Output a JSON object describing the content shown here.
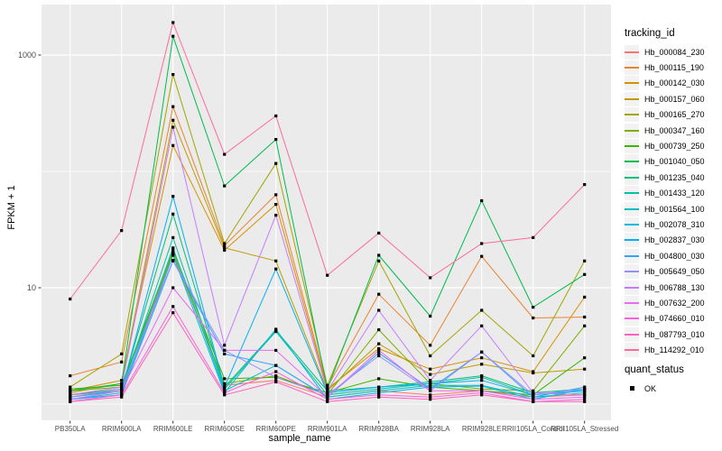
{
  "chart_data": {
    "type": "line",
    "title": "",
    "xlabel": "sample_name",
    "ylabel": "FPKM + 1",
    "y_scale": "log10",
    "ylim": [
      0.7,
      2700
    ],
    "y_ticks": [
      10,
      1000
    ],
    "y_tick_labels": [
      "10",
      "1000"
    ],
    "y_minor_gridlines": [
      1,
      100
    ],
    "grid": true,
    "panel_background": "#EBEBEB",
    "gridline_color": "#FFFFFF",
    "tick_label_color": "#4D4D4D",
    "point_color": "#000000",
    "point_shape": "square",
    "legend": {
      "title": "tracking_id",
      "position": "right"
    },
    "quant_legend": {
      "title": "quant_status",
      "items": [
        {
          "label": "OK",
          "marker": "square",
          "color": "#000000"
        }
      ]
    },
    "categories": [
      "PB350LA",
      "RRIM600LA",
      "RRIM600LE",
      "RRIM600SE",
      "RRIM600PE",
      "RRIM901LA",
      "RRIM928BA",
      "RRIM928LA",
      "RRIM928LE",
      "RRII105LA_Control",
      "RRII105LA_Stressed"
    ],
    "series": [
      {
        "name": "Hb_000084_230",
        "color": "#F8766D",
        "values": [
          1.2,
          1.3,
          19.5,
          1.45,
          1.6,
          1.15,
          1.3,
          1.2,
          1.3,
          1.15,
          1.2
        ]
      },
      {
        "name": "Hb_000115_190",
        "color": "#EA8331",
        "values": [
          1.75,
          2.3,
          360,
          23,
          63,
          1.4,
          8.8,
          3.2,
          18.6,
          5.5,
          5.6
        ]
      },
      {
        "name": "Hb_000142_030",
        "color": "#D89000",
        "values": [
          1.3,
          1.6,
          167,
          21,
          52,
          1.35,
          3.0,
          2.0,
          2.5,
          1.9,
          8.3
        ]
      },
      {
        "name": "Hb_000157_060",
        "color": "#C09B00",
        "values": [
          1.25,
          1.5,
          275,
          22,
          17,
          1.3,
          3.3,
          1.8,
          2.2,
          1.85,
          2.0
        ]
      },
      {
        "name": "Hb_000165_270",
        "color": "#A3A500",
        "values": [
          1.4,
          2.7,
          680,
          24,
          117,
          1.45,
          17,
          2.6,
          6.4,
          2.6,
          17
        ]
      },
      {
        "name": "Hb_000347_160",
        "color": "#7CAE00",
        "values": [
          1.3,
          1.4,
          20,
          1.5,
          1.75,
          1.2,
          4.35,
          1.5,
          1.35,
          1.3,
          4.7
        ]
      },
      {
        "name": "Hb_000739_250",
        "color": "#39B600",
        "values": [
          1.35,
          1.45,
          21,
          1.65,
          1.7,
          1.25,
          1.65,
          1.4,
          1.3,
          1.2,
          2.5
        ]
      },
      {
        "name": "Hb_001040_050",
        "color": "#00BB4E",
        "values": [
          1.3,
          1.5,
          1450,
          75,
          188,
          1.35,
          19,
          5.7,
          56,
          6.8,
          13
        ]
      },
      {
        "name": "Hb_001235_040",
        "color": "#00BF7D",
        "values": [
          1.2,
          1.35,
          43,
          1.4,
          4.3,
          1.3,
          1.4,
          1.55,
          1.75,
          1.25,
          1.35
        ]
      },
      {
        "name": "Hb_001433_120",
        "color": "#00C1A3",
        "values": [
          1.15,
          1.3,
          27,
          1.35,
          4.2,
          1.2,
          1.35,
          1.5,
          1.7,
          1.2,
          1.3
        ]
      },
      {
        "name": "Hb_001564_100",
        "color": "#00BFC4",
        "values": [
          1.1,
          1.25,
          22,
          1.3,
          2.15,
          1.15,
          1.3,
          1.45,
          1.45,
          1.15,
          1.25
        ]
      },
      {
        "name": "Hb_002078_310",
        "color": "#00BAE0",
        "values": [
          1.1,
          1.2,
          19,
          1.25,
          4.4,
          1.1,
          1.25,
          1.4,
          1.43,
          1.1,
          1.35
        ]
      },
      {
        "name": "Hb_002837_030",
        "color": "#00B0F6",
        "values": [
          1.15,
          1.3,
          61,
          1.4,
          14.5,
          1.25,
          1.4,
          1.5,
          1.6,
          1.2,
          1.3
        ]
      },
      {
        "name": "Hb_004800_030",
        "color": "#35A2FF",
        "values": [
          1.1,
          1.2,
          17,
          2.7,
          2.15,
          1.15,
          2.75,
          1.35,
          2.8,
          1.15,
          1.4
        ]
      },
      {
        "name": "Hb_005649_050",
        "color": "#9590FF",
        "values": [
          1.15,
          1.35,
          17.2,
          2.9,
          1.7,
          1.2,
          2.6,
          1.3,
          2.8,
          1.2,
          1.35
        ]
      },
      {
        "name": "Hb_006788_130",
        "color": "#C77CFF",
        "values": [
          1.2,
          1.4,
          240,
          3.2,
          42,
          1.3,
          6.4,
          1.6,
          4.7,
          1.25,
          1.2
        ]
      },
      {
        "name": "Hb_007632_200",
        "color": "#E76BF3",
        "values": [
          1.1,
          1.3,
          10,
          2.9,
          2.9,
          1.15,
          2.9,
          1.3,
          1.3,
          1.1,
          1.15
        ]
      },
      {
        "name": "Hb_074660_010",
        "color": "#FA62DB",
        "values": [
          1.05,
          1.2,
          6.9,
          1.25,
          1.9,
          1.1,
          1.2,
          1.15,
          1.25,
          1.05,
          1.1
        ]
      },
      {
        "name": "Hb_087793_010",
        "color": "#FF62BC",
        "values": [
          1.05,
          1.15,
          6.1,
          1.2,
          1.55,
          1.05,
          1.15,
          1.1,
          1.2,
          1.05,
          1.05
        ]
      },
      {
        "name": "Hb_114292_010",
        "color": "#FF6A98",
        "values": [
          8,
          31,
          1900,
          140,
          300,
          12.8,
          29.5,
          12.2,
          24,
          27,
          77
        ]
      }
    ]
  }
}
